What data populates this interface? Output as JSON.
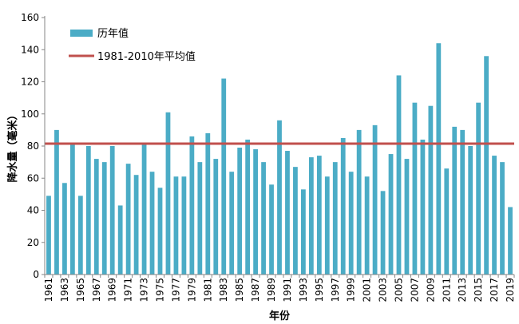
{
  "chart_data": {
    "type": "bar",
    "xlabel": "年份",
    "ylabel": "降水量（毫米）",
    "ylim": [
      0,
      160
    ],
    "yticks": [
      0,
      20,
      40,
      60,
      80,
      100,
      120,
      140,
      160
    ],
    "grid": false,
    "legend": "top-left",
    "categories": [
      "1961",
      "1962",
      "1963",
      "1964",
      "1965",
      "1966",
      "1967",
      "1968",
      "1969",
      "1970",
      "1971",
      "1972",
      "1973",
      "1974",
      "1975",
      "1976",
      "1977",
      "1978",
      "1979",
      "1980",
      "1981",
      "1982",
      "1983",
      "1984",
      "1985",
      "1986",
      "1987",
      "1988",
      "1989",
      "1990",
      "1991",
      "1992",
      "1993",
      "1994",
      "1995",
      "1996",
      "1997",
      "1998",
      "1999",
      "2000",
      "2001",
      "2002",
      "2003",
      "2004",
      "2005",
      "2006",
      "2007",
      "2008",
      "2009",
      "2010",
      "2011",
      "2012",
      "2013",
      "2014",
      "2015",
      "2016",
      "2017",
      "2018",
      "2019"
    ],
    "x_tick_labels": [
      "1961",
      "1963",
      "1965",
      "1967",
      "1969",
      "1971",
      "1973",
      "1975",
      "1977",
      "1979",
      "1981",
      "1983",
      "1985",
      "1987",
      "1989",
      "1991",
      "1993",
      "1995",
      "1997",
      "1999",
      "2001",
      "2003",
      "2005",
      "2007",
      "2009",
      "2011",
      "2013",
      "2015",
      "2017",
      "2019"
    ],
    "series": [
      {
        "name": "历年值",
        "type": "bar",
        "color": "#4bacc6",
        "values": [
          49,
          90,
          57,
          81,
          49,
          80,
          72,
          70,
          80,
          43,
          69,
          62,
          81,
          64,
          54,
          101,
          61,
          61,
          86,
          70,
          88,
          72,
          122,
          64,
          79,
          84,
          78,
          70,
          56,
          96,
          77,
          67,
          53,
          73,
          74,
          61,
          70,
          85,
          64,
          90,
          61,
          93,
          52,
          75,
          124,
          72,
          107,
          84,
          105,
          144,
          66,
          92,
          90,
          80,
          107,
          136,
          74,
          70,
          42
        ]
      },
      {
        "name": "1981-2010年平均值",
        "type": "line",
        "color": "#c0504d",
        "value": 81.5
      }
    ]
  }
}
